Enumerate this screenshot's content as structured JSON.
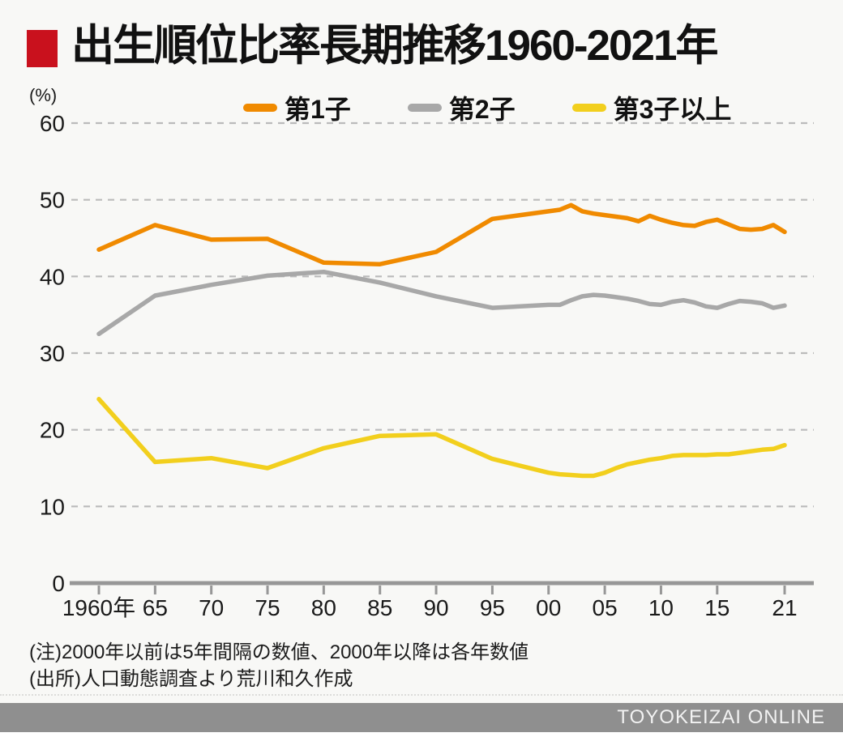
{
  "header": {
    "title": "出生順位比率長期推移1960-2021年",
    "marker_color": "#C9111D"
  },
  "axis_unit_label": "(%)",
  "chart_data": {
    "type": "line",
    "title": "出生順位比率長期推移1960-2021年",
    "ylabel": "(%)",
    "ylim": [
      0,
      60
    ],
    "yticks": [
      0,
      10,
      20,
      30,
      40,
      50,
      60
    ],
    "grid": "dashed-horizontal",
    "legend_position": "top",
    "x_note": "5-year intervals before 2000, annual after 2000",
    "x": [
      1960,
      1965,
      1970,
      1975,
      1980,
      1985,
      1990,
      1995,
      2000,
      2001,
      2002,
      2003,
      2004,
      2005,
      2006,
      2007,
      2008,
      2009,
      2010,
      2011,
      2012,
      2013,
      2014,
      2015,
      2016,
      2017,
      2018,
      2019,
      2020,
      2021
    ],
    "xticks": [
      {
        "year": 1960,
        "label": "1960年"
      },
      {
        "year": 1965,
        "label": "65"
      },
      {
        "year": 1970,
        "label": "70"
      },
      {
        "year": 1975,
        "label": "75"
      },
      {
        "year": 1980,
        "label": "80"
      },
      {
        "year": 1985,
        "label": "85"
      },
      {
        "year": 1990,
        "label": "90"
      },
      {
        "year": 1995,
        "label": "95"
      },
      {
        "year": 2000,
        "label": "00"
      },
      {
        "year": 2005,
        "label": "05"
      },
      {
        "year": 2010,
        "label": "10"
      },
      {
        "year": 2015,
        "label": "15"
      },
      {
        "year": 2021,
        "label": "21"
      }
    ],
    "series": [
      {
        "name": "第1子",
        "key": "first-child",
        "color": "#F08A00",
        "values": [
          43.5,
          46.7,
          44.8,
          44.9,
          41.8,
          41.6,
          43.2,
          47.5,
          48.5,
          48.7,
          49.3,
          48.5,
          48.2,
          48.0,
          47.8,
          47.6,
          47.2,
          47.9,
          47.4,
          47.0,
          46.7,
          46.6,
          47.1,
          47.4,
          46.8,
          46.2,
          46.1,
          46.2,
          46.7,
          45.8
        ]
      },
      {
        "name": "第2子",
        "key": "second-child",
        "color": "#A8A8A8",
        "values": [
          32.5,
          37.5,
          38.9,
          40.1,
          40.6,
          39.2,
          37.4,
          35.9,
          36.3,
          36.3,
          36.9,
          37.4,
          37.6,
          37.5,
          37.3,
          37.1,
          36.8,
          36.4,
          36.3,
          36.7,
          36.9,
          36.6,
          36.1,
          35.9,
          36.4,
          36.8,
          36.7,
          36.5,
          35.9,
          36.2
        ]
      },
      {
        "name": "第3子以上",
        "key": "third-or-later",
        "color": "#F2CF1D",
        "values": [
          24.0,
          15.8,
          16.3,
          15.0,
          17.6,
          19.2,
          19.4,
          16.2,
          14.4,
          14.2,
          14.1,
          14.0,
          14.0,
          14.4,
          15.0,
          15.5,
          15.8,
          16.1,
          16.3,
          16.6,
          16.7,
          16.7,
          16.7,
          16.8,
          16.8,
          17.0,
          17.2,
          17.4,
          17.5,
          18.0
        ]
      }
    ]
  },
  "notes": {
    "line1": "(注)2000年以前は5年間隔の数値、2000年以降は各年数値",
    "line2": "(出所)人口動態調査より荒川和久作成"
  },
  "footer": {
    "brand": "TOYOKEIZAI ONLINE",
    "bar_color": "#8F8F8F"
  }
}
